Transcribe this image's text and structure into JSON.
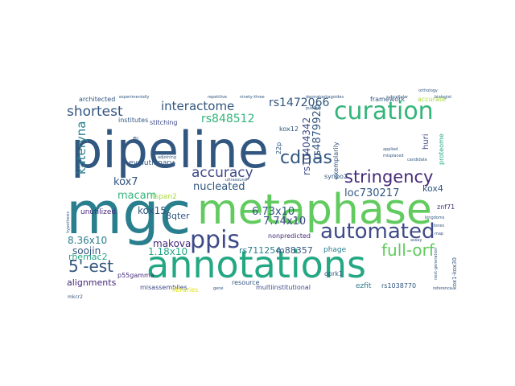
{
  "palette": {
    "dark_blue": "#31567f",
    "dark_purple": "#45297a",
    "indigo": "#3e4a89",
    "teal": "#2a7f8e",
    "teal_light": "#24a884",
    "green": "#33b579",
    "light_green": "#62cb5f",
    "yellow_green": "#a8d93b",
    "yellow": "#e3e419",
    "deep_purple": "#440154"
  },
  "words": [
    {
      "text": "pipeline",
      "color": "#31567f",
      "weight": 1.0
    },
    {
      "text": "mgc",
      "color": "#2a7f8e",
      "weight": 0.95
    },
    {
      "text": "metaphase",
      "color": "#62cb5f",
      "weight": 0.82
    },
    {
      "text": "annotations",
      "color": "#24a884",
      "weight": 0.78
    },
    {
      "text": "curation",
      "color": "#33b579",
      "weight": 0.55
    },
    {
      "text": "ppis",
      "color": "#3e4a89",
      "weight": 0.55
    },
    {
      "text": "automated",
      "color": "#3e4a89",
      "weight": 0.45
    },
    {
      "text": "stringency",
      "color": "#45297a",
      "weight": 0.38
    },
    {
      "text": "cdnas",
      "color": "#31567f",
      "weight": 0.36
    },
    {
      "text": "5'-est",
      "color": "#31567f",
      "weight": 0.34
    },
    {
      "text": "full-orf",
      "color": "#62cb5f",
      "weight": 0.33
    },
    {
      "text": "accuracy",
      "color": "#3e4a89",
      "weight": 0.3
    },
    {
      "text": "shortest",
      "color": "#31567f",
      "weight": 0.3
    },
    {
      "text": "interactome",
      "color": "#31567f",
      "weight": 0.28
    },
    {
      "text": "kateryna",
      "color": "#2a7f8e",
      "weight": 0.25
    },
    {
      "text": "rs848512",
      "color": "#33b579",
      "weight": 0.24
    },
    {
      "text": "rs1472066",
      "color": "#31567f",
      "weight": 0.23
    },
    {
      "text": "rs4879926",
      "color": "#31567f",
      "weight": 0.2
    },
    {
      "text": "rs10404342",
      "color": "#3e4a89",
      "weight": 0.18
    },
    {
      "text": "nucleated",
      "color": "#31567f",
      "weight": 0.2
    },
    {
      "text": "loc730217",
      "color": "#31567f",
      "weight": 0.2
    },
    {
      "text": "macam",
      "color": "#33b579",
      "weight": 0.18
    },
    {
      "text": "kox7",
      "color": "#31567f",
      "weight": 0.18
    },
    {
      "text": "6.73x10",
      "color": "#31567f",
      "weight": 0.18
    },
    {
      "text": "7.74x10",
      "color": "#3e4a89",
      "weight": 0.18
    },
    {
      "text": "8.36x10",
      "color": "#2a7f8e",
      "weight": 0.16
    },
    {
      "text": "1.18x10",
      "color": "#24a884",
      "weight": 0.16
    },
    {
      "text": "makova",
      "color": "#45297a",
      "weight": 0.16
    },
    {
      "text": "kox15",
      "color": "#31567f",
      "weight": 0.16
    },
    {
      "text": "8qter",
      "color": "#31567f",
      "weight": 0.15
    },
    {
      "text": "rs711254",
      "color": "#2a7f8e",
      "weight": 0.15
    },
    {
      "text": "m88357",
      "color": "#31567f",
      "weight": 0.15
    },
    {
      "text": "soojin",
      "color": "#31567f",
      "weight": 0.15
    },
    {
      "text": "rhemac2",
      "color": "#24a884",
      "weight": 0.15
    },
    {
      "text": "alignments",
      "color": "#45297a",
      "weight": 0.15
    },
    {
      "text": "kox4",
      "color": "#31567f",
      "weight": 0.15
    },
    {
      "text": "huri",
      "color": "#3e4a89",
      "weight": 0.14
    },
    {
      "text": "unutilized",
      "color": "#45297a",
      "weight": 0.12
    },
    {
      "text": "evolutionary",
      "color": "#31567f",
      "weight": 0.11
    },
    {
      "text": "phage",
      "color": "#2a7f8e",
      "weight": 0.11
    },
    {
      "text": "ezfit",
      "color": "#2a7f8e",
      "weight": 0.1
    },
    {
      "text": "rs1038770",
      "color": "#31567f",
      "weight": 0.1
    },
    {
      "text": "misassemblies",
      "color": "#3e4a89",
      "weight": 0.1
    },
    {
      "text": "multiinstitutional",
      "color": "#3e4a89",
      "weight": 0.1
    },
    {
      "text": "resource",
      "color": "#31567f",
      "weight": 0.1
    },
    {
      "text": "architected",
      "color": "#31567f",
      "weight": 0.1
    },
    {
      "text": "framework",
      "color": "#31567f",
      "weight": 0.1
    },
    {
      "text": "stitching",
      "color": "#3e4a89",
      "weight": 0.1
    },
    {
      "text": "institutes",
      "color": "#31567f",
      "weight": 0.1
    },
    {
      "text": "accurate",
      "color": "#a8d93b",
      "weight": 0.1
    },
    {
      "text": "p55gamma",
      "color": "#45297a",
      "weight": 0.1
    },
    {
      "text": "nonpredicted",
      "color": "#45297a",
      "weight": 0.1
    },
    {
      "text": "tspan2",
      "color": "#a8d93b",
      "weight": 0.1
    },
    {
      "text": "kox12",
      "color": "#31567f",
      "weight": 0.1
    },
    {
      "text": "synpo2",
      "color": "#31567f",
      "weight": 0.1
    },
    {
      "text": "znf71",
      "color": "#45297a",
      "weight": 0.1
    },
    {
      "text": "flj",
      "color": "#31567f",
      "weight": 0.1
    },
    {
      "text": "22p",
      "color": "#31567f",
      "weight": 0.1
    },
    {
      "text": "libraries",
      "color": "#e3e419",
      "weight": 0.1
    },
    {
      "text": "oprk1",
      "color": "#31567f",
      "weight": 0.1
    },
    {
      "text": "kox1-kox30",
      "color": "#31567f",
      "weight": 0.09
    },
    {
      "text": "exemplarily",
      "color": "#31567f",
      "weight": 0.09
    },
    {
      "text": "proteome",
      "color": "#24a884",
      "weight": 0.09
    },
    {
      "text": "experimentally",
      "color": "#31567f",
      "weight": 0.06
    },
    {
      "text": "repetitive",
      "color": "#31567f",
      "weight": 0.06
    },
    {
      "text": "ninety-three",
      "color": "#31567f",
      "weight": 0.06
    },
    {
      "text": "dermatophagoides",
      "color": "#31567f",
      "weight": 0.06
    },
    {
      "text": "subcellular",
      "color": "#31567f",
      "weight": 0.06
    },
    {
      "text": "orthology",
      "color": "#31567f",
      "weight": 0.06
    },
    {
      "text": "biologist",
      "color": "#31567f",
      "weight": 0.06
    },
    {
      "text": "candidate",
      "color": "#31567f",
      "weight": 0.06
    },
    {
      "text": "applied",
      "color": "#31567f",
      "weight": 0.06
    },
    {
      "text": "misplaced",
      "color": "#31567f",
      "weight": 0.06
    },
    {
      "text": "kingdoms",
      "color": "#31567f",
      "weight": 0.06
    },
    {
      "text": "clones",
      "color": "#31567f",
      "weight": 0.06
    },
    {
      "text": "map",
      "color": "#31567f",
      "weight": 0.06
    },
    {
      "text": "reference",
      "color": "#31567f",
      "weight": 0.06
    },
    {
      "text": "next-generation",
      "color": "#31567f",
      "weight": 0.06
    },
    {
      "text": "hypothesis",
      "color": "#31567f",
      "weight": 0.06
    },
    {
      "text": "adjoining",
      "color": "#31567f",
      "weight": 0.06
    },
    {
      "text": "publicly",
      "color": "#31567f",
      "weight": 0.06
    },
    {
      "text": "ultrasound",
      "color": "#31567f",
      "weight": 0.06
    },
    {
      "text": "gene",
      "color": "#31567f",
      "weight": 0.06
    },
    {
      "text": "assay",
      "color": "#31567f",
      "weight": 0.06
    },
    {
      "text": "mkcr2",
      "color": "#31567f",
      "weight": 0.06
    }
  ]
}
